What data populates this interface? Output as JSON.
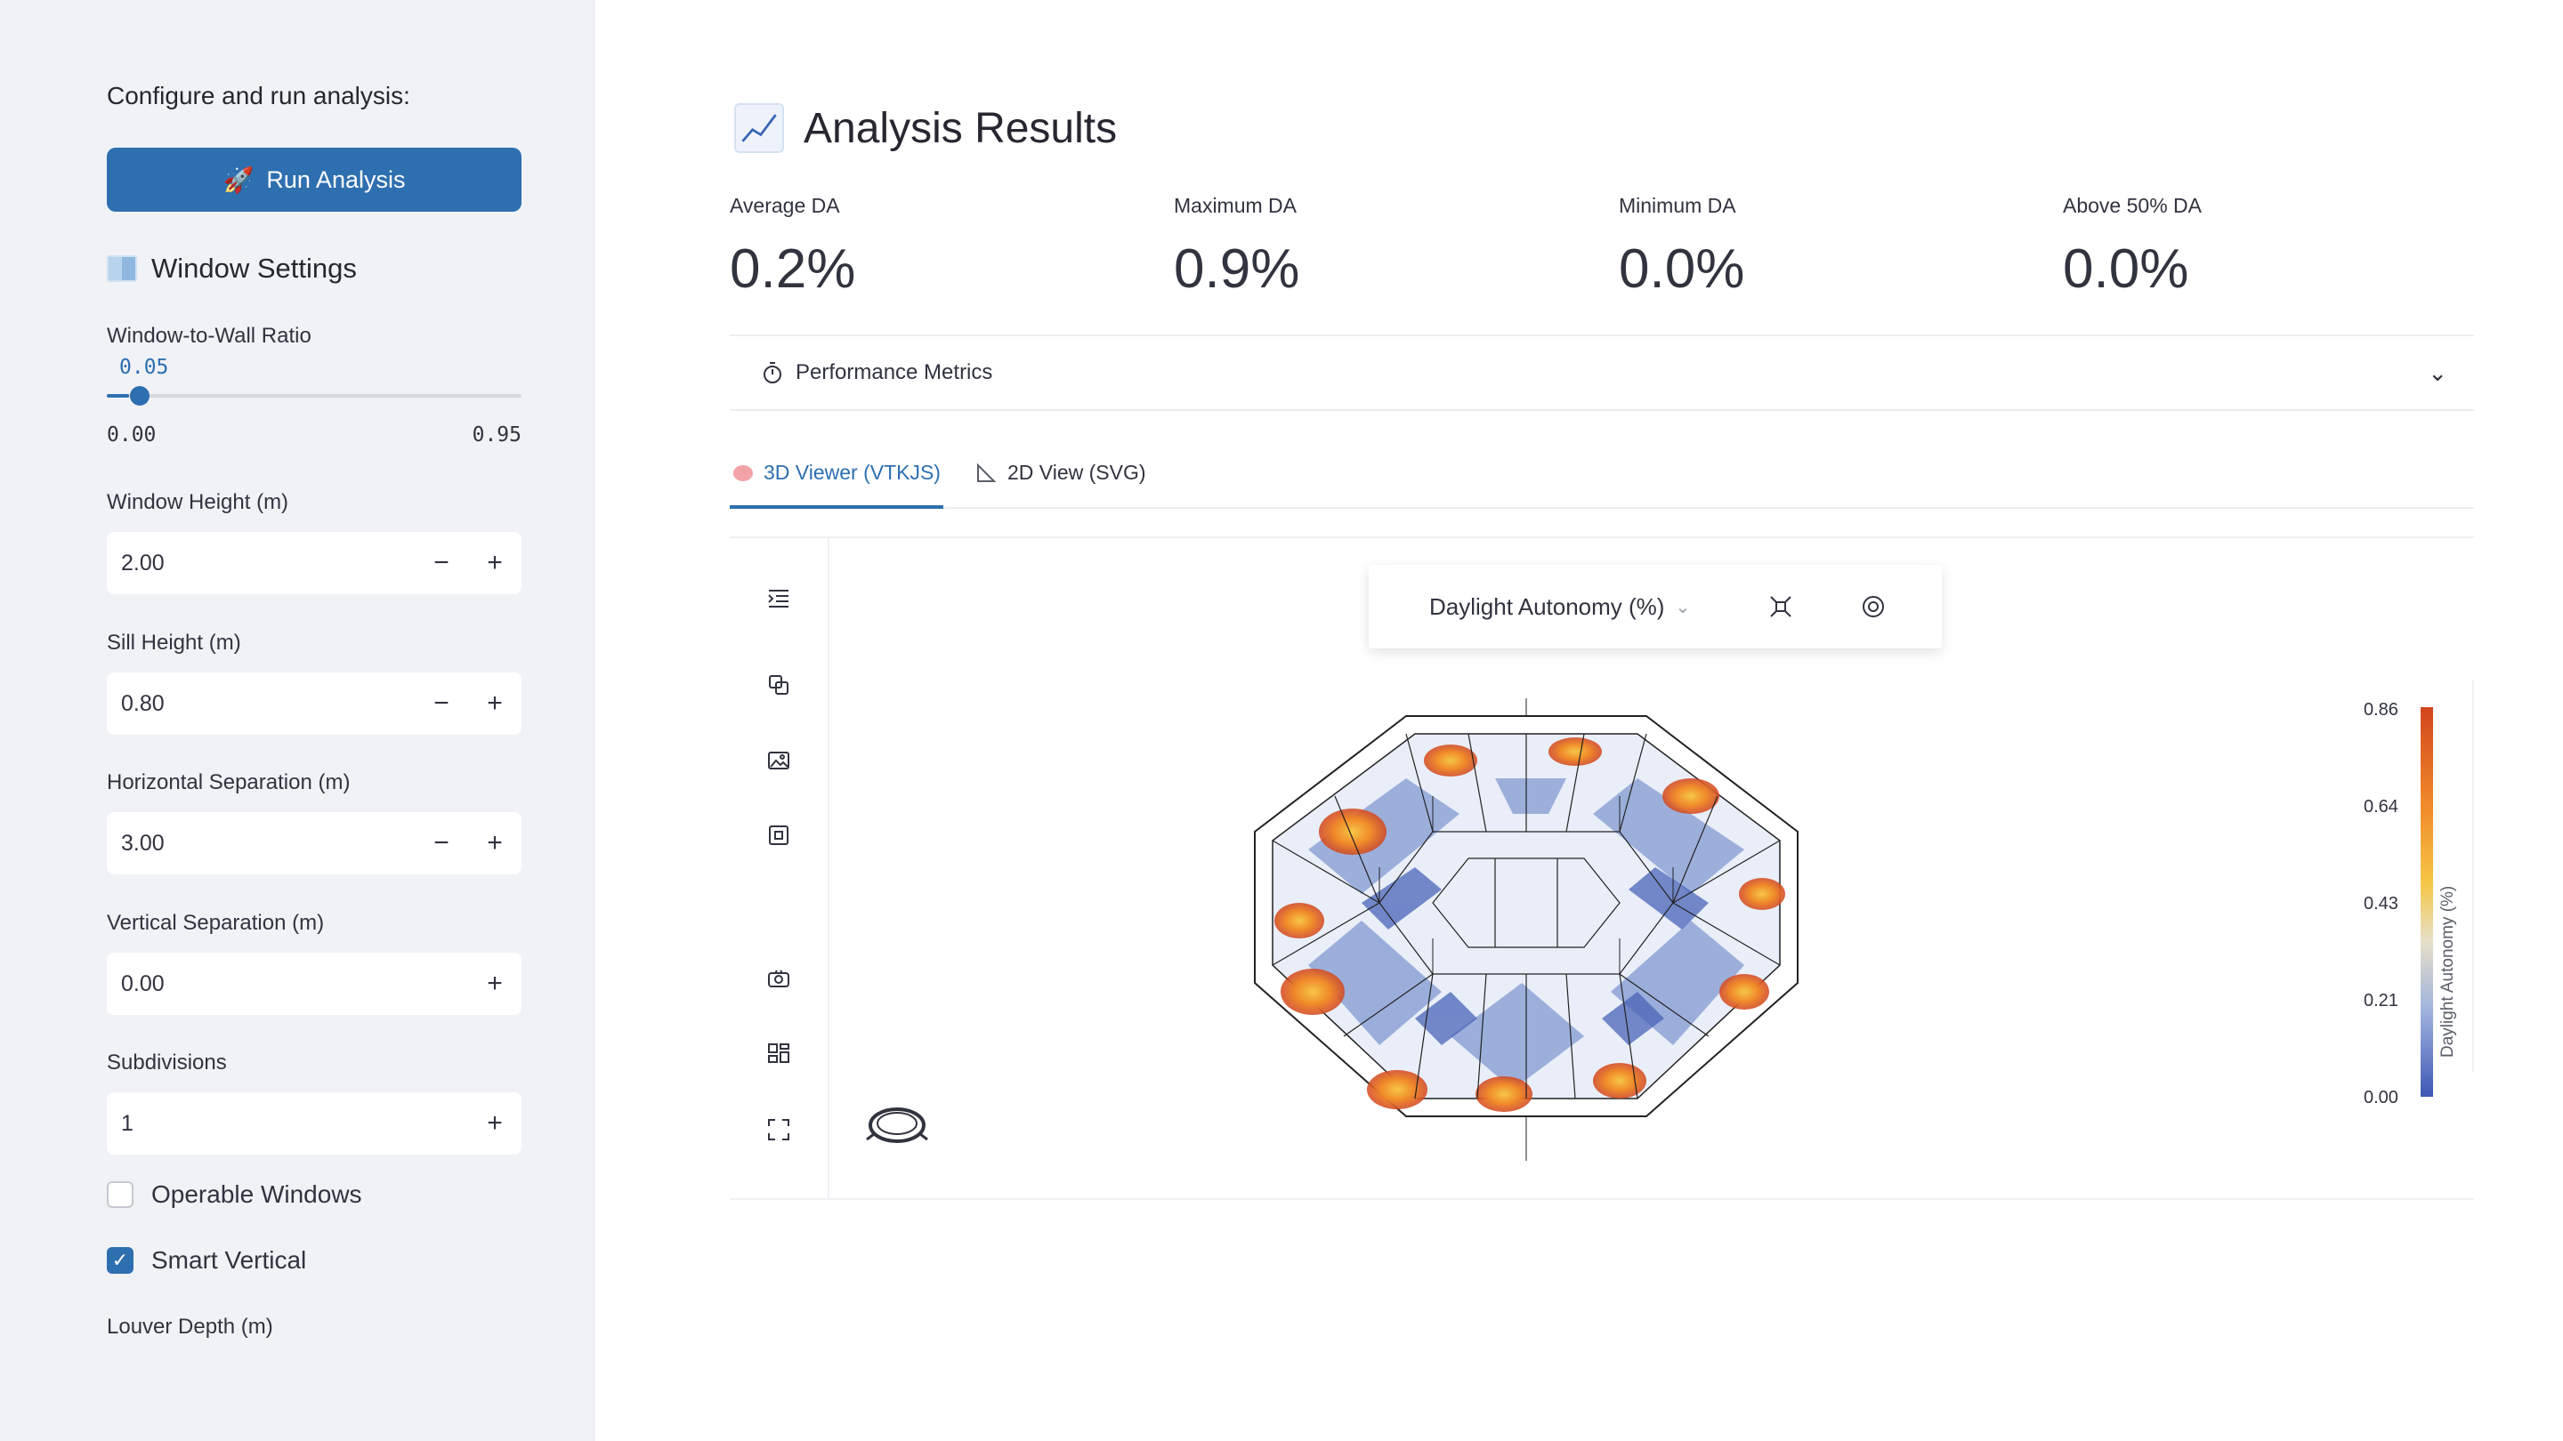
{
  "sidebar": {
    "heading": "Configure and run analysis:",
    "run_button": "Run Analysis",
    "section_title": "Window Settings",
    "wwr": {
      "label": "Window-to-Wall Ratio",
      "value": "0.05",
      "min": "0.00",
      "max": "0.95",
      "fraction": 0.053
    },
    "window_height": {
      "label": "Window Height (m)",
      "value": "2.00"
    },
    "sill_height": {
      "label": "Sill Height (m)",
      "value": "0.80"
    },
    "horizontal_sep": {
      "label": "Horizontal Separation (m)",
      "value": "3.00"
    },
    "vertical_sep": {
      "label": "Vertical Separation (m)",
      "value": "0.00"
    },
    "subdivisions": {
      "label": "Subdivisions",
      "value": "1"
    },
    "operable_windows": {
      "label": "Operable Windows",
      "checked": false
    },
    "smart_vertical": {
      "label": "Smart Vertical",
      "checked": true
    },
    "louver_depth": {
      "label": "Louver Depth (m)"
    }
  },
  "main": {
    "title": "Analysis Results",
    "metrics": [
      {
        "label": "Average DA",
        "value": "0.2%"
      },
      {
        "label": "Maximum DA",
        "value": "0.9%"
      },
      {
        "label": "Minimum DA",
        "value": "0.0%"
      },
      {
        "label": "Above 50% DA",
        "value": "0.0%"
      }
    ],
    "expander_label": "Performance Metrics",
    "tabs": [
      {
        "label": "3D Viewer (VTKJS)",
        "active": true
      },
      {
        "label": "2D View (SVG)",
        "active": false
      }
    ],
    "viewer": {
      "metric_select": "Daylight Autonomy (%)",
      "legend_title": "Daylight Autonomy (%)",
      "legend_ticks": [
        "0.86",
        "0.64",
        "0.43",
        "0.21",
        "0.00"
      ]
    }
  },
  "colors": {
    "accent": "#2e6fb0",
    "sidebar_bg": "#f0f2f6",
    "high": "#d2461e",
    "low": "#3e58b4"
  }
}
